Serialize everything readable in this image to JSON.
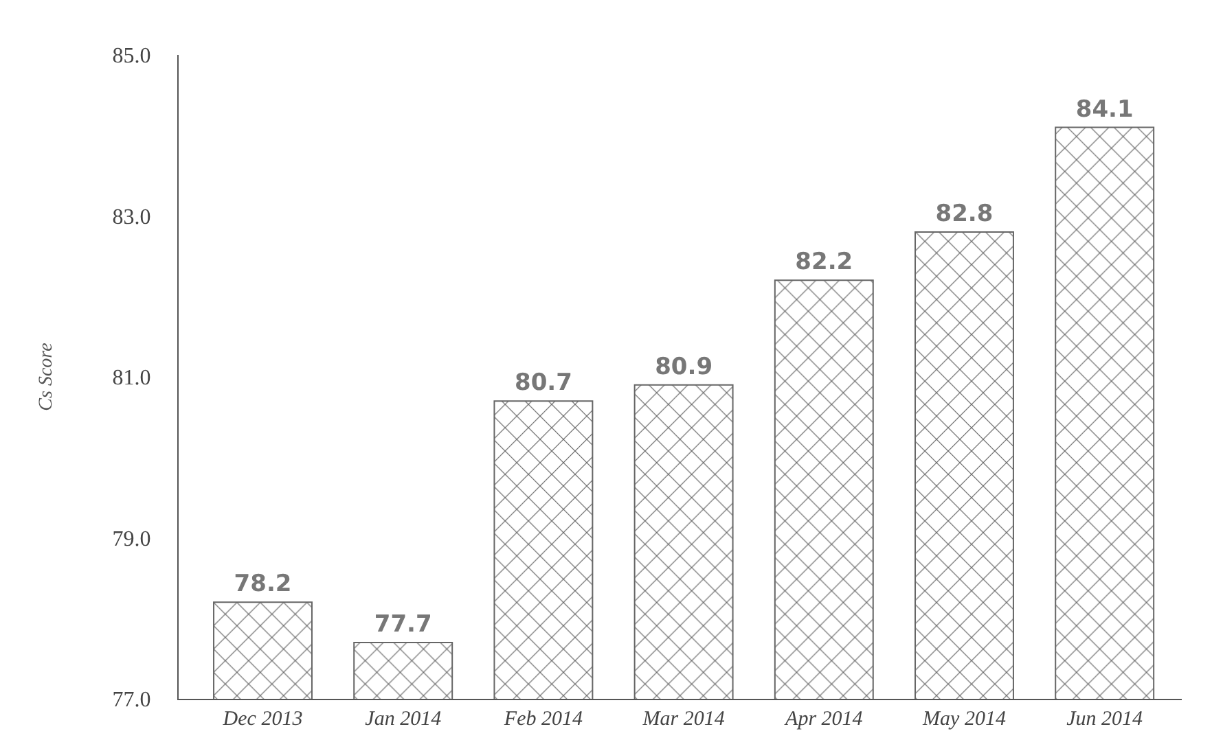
{
  "chart_data": {
    "type": "bar",
    "ylabel": "Cs Score",
    "categories": [
      "Dec 2013",
      "Jan 2014",
      "Feb 2014",
      "Mar 2014",
      "Apr 2014",
      "May 2014",
      "Jun 2014"
    ],
    "series": [
      {
        "color": "#666666",
        "values": [
          78.2,
          77.7,
          80.7,
          80.9,
          82.2,
          82.8,
          84.1
        ]
      }
    ],
    "ylim": [
      77,
      85
    ],
    "yticks": [
      {
        "value": 77,
        "label": "77.0"
      },
      {
        "value": 79,
        "label": "79.0"
      },
      {
        "value": 81,
        "label": "81.0"
      },
      {
        "value": 83,
        "label": "83.0"
      },
      {
        "value": 85,
        "label": "85.0"
      }
    ],
    "grid": false,
    "data_labels": true
  }
}
